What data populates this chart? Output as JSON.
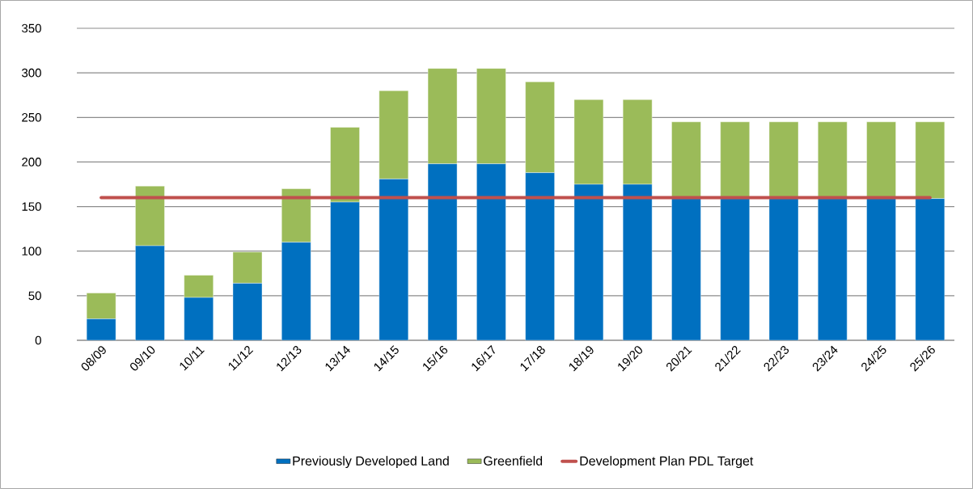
{
  "chart_data": {
    "type": "bar",
    "stacked": true,
    "categories": [
      "08/09",
      "09/10",
      "10/11",
      "11/12",
      "12/13",
      "13/14",
      "14/15",
      "15/16",
      "16/17",
      "17/18",
      "18/19",
      "19/20",
      "20/21",
      "21/22",
      "22/23",
      "23/24",
      "24/25",
      "25/26"
    ],
    "series": [
      {
        "name": "Previously Developed Land",
        "color": "#0070c0",
        "values": [
          24,
          106,
          48,
          64,
          110,
          155,
          181,
          198,
          198,
          188,
          175,
          175,
          159,
          159,
          159,
          159,
          159,
          159
        ]
      },
      {
        "name": "Greenfield",
        "color": "#9bbb59",
        "values": [
          29,
          67,
          25,
          35,
          60,
          84,
          99,
          107,
          107,
          102,
          95,
          95,
          86,
          86,
          86,
          86,
          86,
          86
        ]
      },
      {
        "name": "Development Plan PDL Target",
        "type": "line",
        "color": "#c0504d",
        "values": [
          160,
          160,
          160,
          160,
          160,
          160,
          160,
          160,
          160,
          160,
          160,
          160,
          160,
          160,
          160,
          160,
          160,
          160
        ]
      }
    ],
    "ylim": [
      0,
      350
    ],
    "yticks": [
      0,
      50,
      100,
      150,
      200,
      250,
      300,
      350
    ],
    "grid": "y",
    "legend": "bottom",
    "marker": "none"
  }
}
